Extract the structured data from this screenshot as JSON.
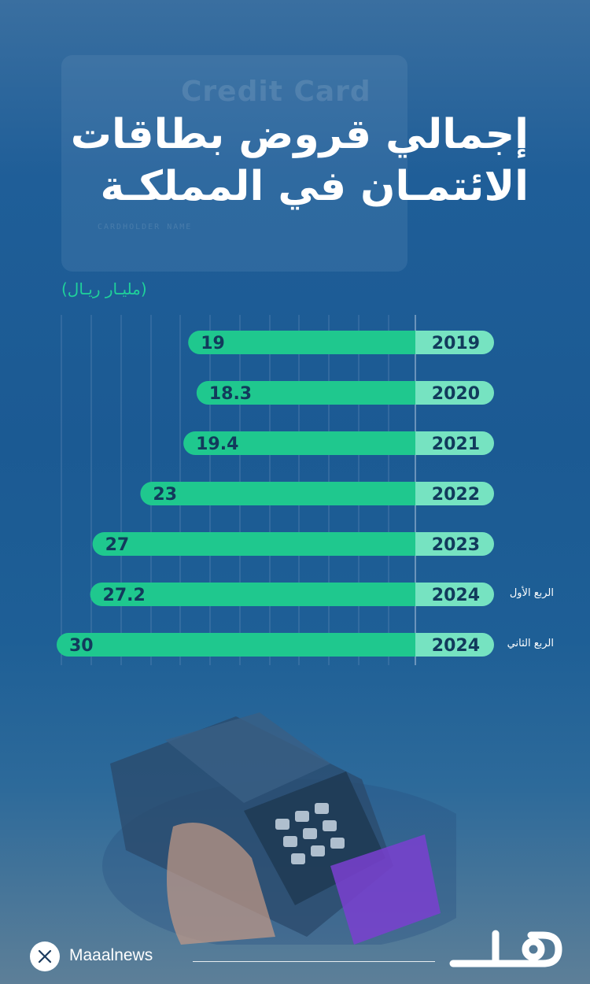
{
  "header": {
    "title_line1": "إجمالي قروض بطاقات",
    "title_line2": "الائتمـان في المملكـة",
    "unit": "(مليـار ريـال)"
  },
  "background": {
    "card_text": "Credit Card",
    "card_holder": "CARDHOLDER NAME"
  },
  "chart_data": {
    "type": "bar",
    "orientation": "horizontal",
    "direction": "right-to-left",
    "categories": [
      "2019",
      "2020",
      "2021",
      "2022",
      "2023",
      "2024",
      "2024"
    ],
    "category_notes": [
      "",
      "",
      "",
      "",
      "",
      "الربع الأول",
      "الربع الثاني"
    ],
    "values": [
      19,
      18.3,
      19.4,
      23,
      27,
      27.2,
      30
    ],
    "labels": [
      "19",
      "18.3",
      "19.4",
      "23",
      "27",
      "27.2",
      "30"
    ],
    "unit": "(مليـار ريـال)",
    "grid": true,
    "colors": {
      "bar": "#1fc88e",
      "year_cap": "#76e3c1",
      "year_text": "#123a5c",
      "value_text": "#123a5c",
      "grid": "#5b86b4"
    }
  },
  "footer": {
    "handle": "Maaalnews",
    "social_icon": "x-icon",
    "logo_icon": "maal-logo-icon"
  }
}
